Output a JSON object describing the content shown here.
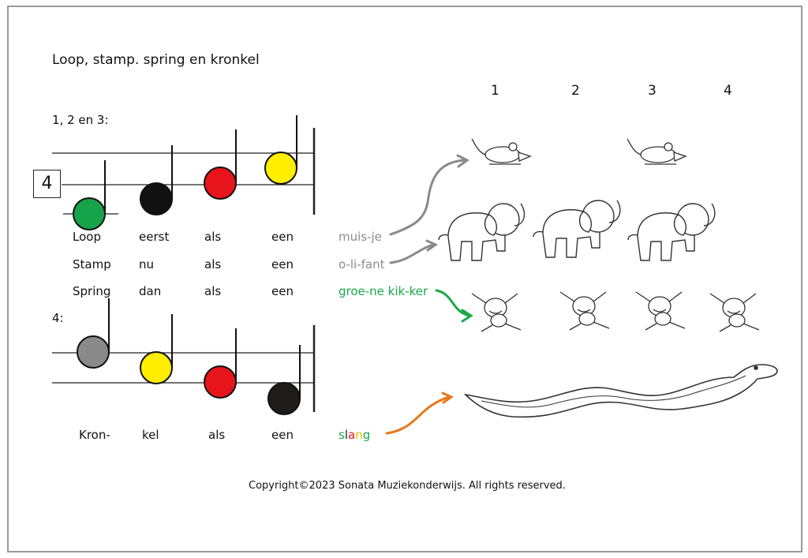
{
  "title": "Loop, stamp. spring en kronkel",
  "section1_label": "1, 2 en 3:",
  "section2_label": "4:",
  "time_signature": "4",
  "beats": [
    "1",
    "2",
    "3",
    "4"
  ],
  "lyrics": [
    {
      "words": [
        "Loop",
        "eerst",
        "als",
        "een"
      ],
      "animal": "muis-je"
    },
    {
      "words": [
        "Stamp",
        "nu",
        "als",
        "een"
      ],
      "animal": "o-li-fant"
    },
    {
      "words": [
        "Spring",
        "dan",
        "als",
        "een"
      ],
      "animal": "groe-ne kik-ker"
    }
  ],
  "lyrics4": {
    "words": [
      "Kron-",
      "kel",
      "als",
      "een"
    ],
    "animal": "slang"
  },
  "slang_letters": [
    {
      "char": "s",
      "color": "#1aa84a"
    },
    {
      "char": "l",
      "color": "#222222"
    },
    {
      "char": "a",
      "color": "#e8141b"
    },
    {
      "char": "n",
      "color": "#e0c400"
    },
    {
      "char": "g",
      "color": "#1aa84a"
    }
  ],
  "note_colors": {
    "green": "#16a34a",
    "black": "#111111",
    "red": "#e8141b",
    "yellow": "#ffee00",
    "gray": "#8a8a8a",
    "dark": "#1e1b18"
  },
  "arrow_colors": {
    "mouse": "#8a8a8a",
    "elephant": "#8a8a8a",
    "frog": "#1aa84a",
    "snake": "#e8781a"
  },
  "copyright": "Copyright©2023 Sonata Muziekonderwijs. All rights reserved."
}
